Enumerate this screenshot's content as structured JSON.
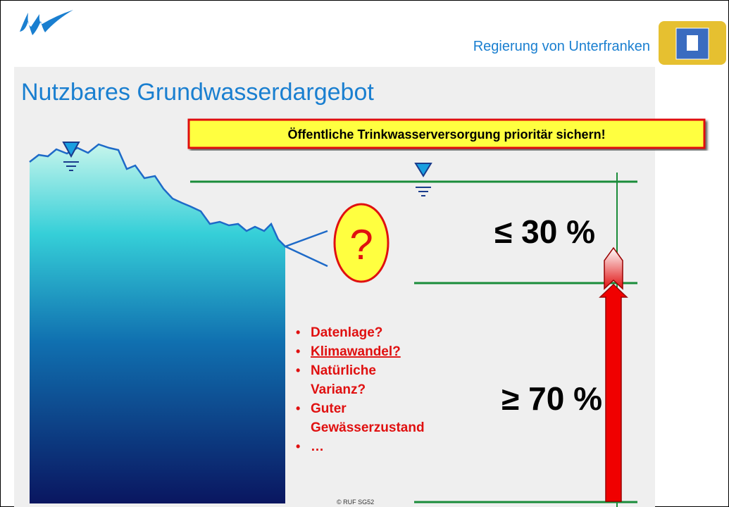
{
  "header": {
    "organization": "Regierung von Unterfranken"
  },
  "title": "Nutzbares Grundwasserdargebot",
  "banner": "Öffentliche Trinkwasserversorgung prioritär sichern!",
  "question": "?",
  "upper_share": "≤ 30 %",
  "lower_share": "≥ 70 %",
  "bullets": [
    [
      "Datenlage?"
    ],
    [
      "Klimawandel?"
    ],
    [
      "Natürliche",
      "Varianz?"
    ],
    [
      "Guter",
      "Gewässerzustand"
    ],
    [
      "…"
    ]
  ],
  "bullet_symbol": "•",
  "copyright": "© RUF SG52"
}
